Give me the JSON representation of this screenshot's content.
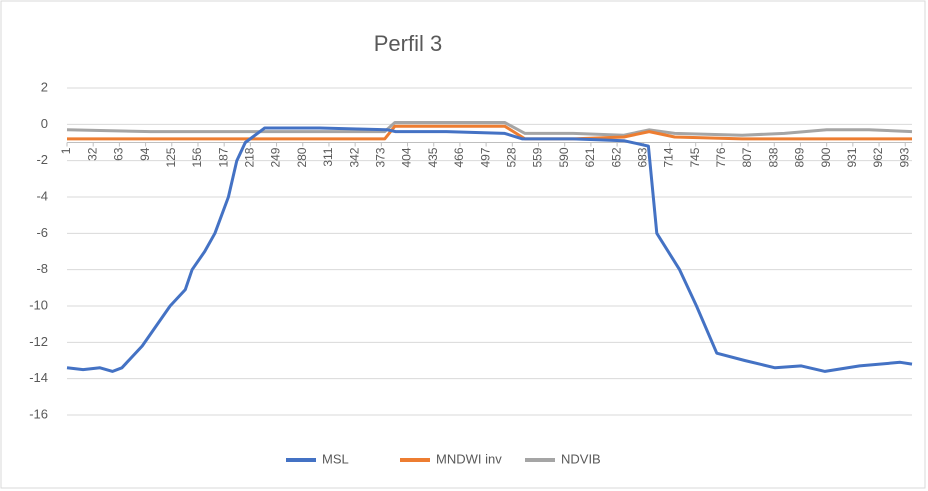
{
  "chart_data": {
    "type": "line",
    "title": "Perfil 3",
    "xlim": [
      1,
      1001
    ],
    "xticks": [
      1,
      32,
      63,
      94,
      125,
      156,
      187,
      218,
      249,
      280,
      311,
      342,
      373,
      404,
      435,
      466,
      497,
      528,
      559,
      590,
      621,
      652,
      683,
      714,
      745,
      776,
      807,
      838,
      869,
      900,
      931,
      962,
      993
    ],
    "ylim": [
      -16,
      2
    ],
    "yticks": [
      2,
      0,
      -2,
      -4,
      -6,
      -8,
      -10,
      -12,
      -14,
      -16
    ],
    "xaxis_crosses": -1,
    "grid": true,
    "legend": "bottom",
    "series": [
      {
        "name": "MSL",
        "color": "#4472c4",
        "x": [
          1,
          20,
          40,
          55,
          66,
          90,
          123,
          141,
          149,
          164,
          176,
          192,
          202,
          212,
          235,
          300,
          380,
          390,
          450,
          519,
          540,
          600,
          660,
          689,
          699,
          726,
          746,
          770,
          803,
          839,
          870,
          898,
          939,
          987,
          1001
        ],
        "values": [
          -13.4,
          -13.5,
          -13.4,
          -13.6,
          -13.4,
          -12.2,
          -10,
          -9.1,
          -8,
          -7,
          -6,
          -4,
          -2,
          -1,
          -0.2,
          -0.2,
          -0.3,
          -0.4,
          -0.4,
          -0.5,
          -0.8,
          -0.8,
          -0.9,
          -1.2,
          -6,
          -8,
          -10,
          -12.6,
          -13,
          -13.4,
          -13.3,
          -13.6,
          -13.3,
          -13.1,
          -13.2
        ]
      },
      {
        "name": "MNDWI inv",
        "color": "#ed7d31",
        "x": [
          1,
          100,
          200,
          300,
          377,
          389,
          450,
          519,
          543,
          600,
          660,
          690,
          720,
          800,
          900,
          1001
        ],
        "values": [
          -0.8,
          -0.8,
          -0.8,
          -0.8,
          -0.8,
          -0.1,
          -0.1,
          -0.1,
          -0.8,
          -0.8,
          -0.7,
          -0.4,
          -0.7,
          -0.8,
          -0.8,
          -0.8
        ]
      },
      {
        "name": "NDVIB",
        "color": "#a5a5a5",
        "x": [
          1,
          100,
          200,
          300,
          377,
          389,
          450,
          519,
          543,
          600,
          660,
          690,
          720,
          800,
          850,
          900,
          950,
          1001
        ],
        "values": [
          -0.3,
          -0.4,
          -0.4,
          -0.4,
          -0.4,
          0.1,
          0.1,
          0.1,
          -0.5,
          -0.5,
          -0.6,
          -0.3,
          -0.5,
          -0.6,
          -0.5,
          -0.3,
          -0.3,
          -0.4
        ]
      }
    ]
  }
}
